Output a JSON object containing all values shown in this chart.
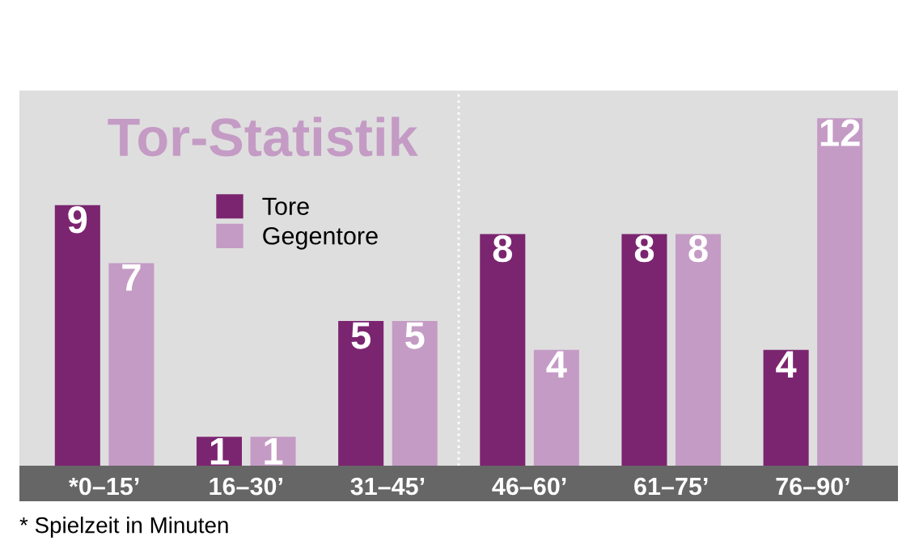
{
  "chart_data": {
    "type": "bar",
    "title": "Tor-Statistik",
    "categories": [
      "*0–15’",
      "16–30’",
      "31–45’",
      "46–60’",
      "61–75’",
      "76–90’"
    ],
    "series": [
      {
        "name": "Tore",
        "color": "#7b2570",
        "values": [
          9,
          1,
          5,
          8,
          8,
          4
        ]
      },
      {
        "name": "Gegentore",
        "color": "#c49bc4",
        "values": [
          7,
          1,
          5,
          4,
          8,
          12
        ]
      }
    ],
    "data_labels": true,
    "legend": "top left",
    "grid": false,
    "annotations": [
      "* Spielzeit in Minuten"
    ]
  }
}
